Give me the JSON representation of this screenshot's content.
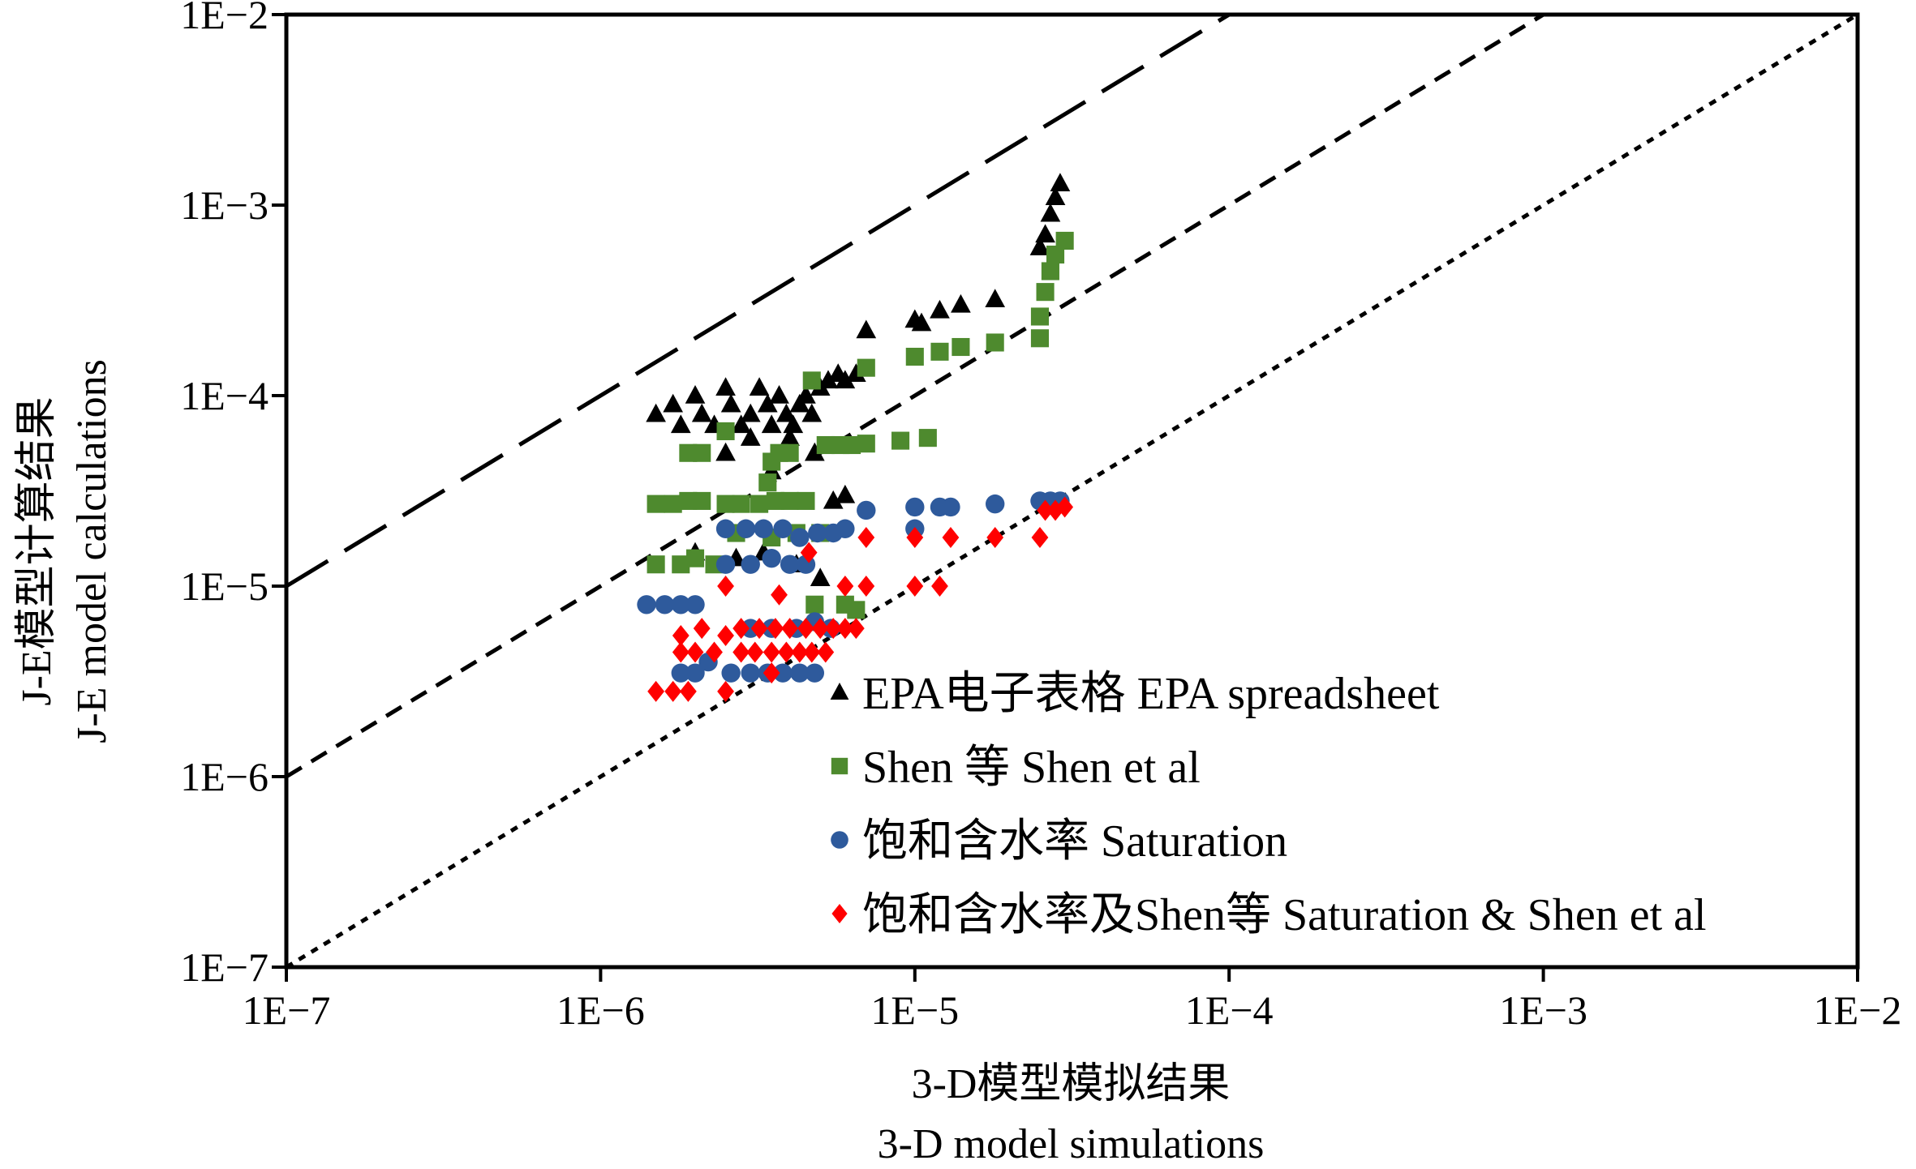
{
  "chart_data": {
    "type": "scatter",
    "x_scale": "log",
    "y_scale": "log",
    "xlim": [
      1e-07,
      0.01
    ],
    "ylim": [
      1e-07,
      0.01
    ],
    "grid": false,
    "legend_position": "bottom-right",
    "x_ticks": [
      "1E−7",
      "1E−6",
      "1E−5",
      "1E−4",
      "1E−3",
      "1E−2"
    ],
    "y_ticks": [
      "1E−7",
      "1E−6",
      "1E−5",
      "1E−4",
      "1E−3",
      "1E−2"
    ],
    "xlabel_cn": "3-D模型模拟结果",
    "xlabel_en": "3-D model simulations",
    "ylabel_cn": "J-E模型计算结果",
    "ylabel_en": "J-E model calculations",
    "reference_lines": [
      {
        "factor": 100,
        "style": "long-dash"
      },
      {
        "factor": 10,
        "style": "short-dash"
      },
      {
        "factor": 1,
        "style": "dotted"
      }
    ],
    "series": [
      {
        "name": "EPA电子表格 EPA spreadsheet",
        "marker": "triangle",
        "color": "#000000",
        "points": [
          [
            1.5e-06,
            8e-05
          ],
          [
            1.7e-06,
            9e-05
          ],
          [
            1.8e-06,
            7e-05
          ],
          [
            2e-06,
            0.0001
          ],
          [
            2.1e-06,
            8e-05
          ],
          [
            2.3e-06,
            7e-05
          ],
          [
            2.5e-06,
            0.00011
          ],
          [
            2.6e-06,
            9e-05
          ],
          [
            2.8e-06,
            7e-05
          ],
          [
            3e-06,
            8e-05
          ],
          [
            3.2e-06,
            0.00011
          ],
          [
            3.4e-06,
            9e-05
          ],
          [
            3.5e-06,
            7e-05
          ],
          [
            3.7e-06,
            0.0001
          ],
          [
            3.9e-06,
            8e-05
          ],
          [
            4.1e-06,
            7e-05
          ],
          [
            4.3e-06,
            9e-05
          ],
          [
            4.5e-06,
            0.0001
          ],
          [
            4.7e-06,
            8e-05
          ],
          [
            5e-06,
            0.00011
          ],
          [
            5.3e-06,
            0.00012
          ],
          [
            5.7e-06,
            0.00013
          ],
          [
            6e-06,
            0.00012
          ],
          [
            6.5e-06,
            0.00013
          ],
          [
            7e-06,
            0.00022
          ],
          [
            1e-05,
            0.00025
          ],
          [
            1.05e-05,
            0.00024
          ],
          [
            1.2e-05,
            0.00028
          ],
          [
            1.4e-05,
            0.0003
          ],
          [
            1.8e-05,
            0.00032
          ],
          [
            2.5e-05,
            0.0006
          ],
          [
            2.6e-05,
            0.0007
          ],
          [
            2.7e-05,
            0.0009
          ],
          [
            2.8e-05,
            0.0011
          ],
          [
            2.9e-05,
            0.0013
          ],
          [
            2.5e-06,
            5e-05
          ],
          [
            3e-06,
            6e-05
          ],
          [
            3.5e-06,
            4e-05
          ],
          [
            4e-06,
            6e-05
          ],
          [
            4.8e-06,
            5e-05
          ],
          [
            2e-06,
            1.5e-05
          ],
          [
            2.7e-06,
            1.4e-05
          ],
          [
            3.3e-06,
            1.5e-05
          ],
          [
            4.2e-06,
            1.3e-05
          ],
          [
            5e-06,
            1.1e-05
          ],
          [
            5.5e-06,
            2.8e-05
          ],
          [
            6e-06,
            3e-05
          ]
        ]
      },
      {
        "name": "Shen 等 Shen et al",
        "marker": "square",
        "color": "#4e8a2e",
        "points": [
          [
            1.5e-06,
            2.7e-05
          ],
          [
            1.7e-06,
            2.7e-05
          ],
          [
            1.9e-06,
            2.8e-05
          ],
          [
            2.1e-06,
            2.8e-05
          ],
          [
            1.9e-06,
            5e-05
          ],
          [
            2.1e-06,
            5e-05
          ],
          [
            2.5e-06,
            6.5e-05
          ],
          [
            2.5e-06,
            2.7e-05
          ],
          [
            2.8e-06,
            2.7e-05
          ],
          [
            3.2e-06,
            2.7e-05
          ],
          [
            3.6e-06,
            2.8e-05
          ],
          [
            4e-06,
            2.8e-05
          ],
          [
            4.5e-06,
            2.8e-05
          ],
          [
            3.5e-06,
            4.5e-05
          ],
          [
            3.7e-06,
            5e-05
          ],
          [
            4e-06,
            5e-05
          ],
          [
            3.4e-06,
            3.5e-05
          ],
          [
            4.7e-06,
            0.00012
          ],
          [
            5.2e-06,
            5.5e-05
          ],
          [
            5.8e-06,
            5.5e-05
          ],
          [
            6.3e-06,
            5.5e-05
          ],
          [
            7e-06,
            5.6e-05
          ],
          [
            7e-06,
            0.00014
          ],
          [
            9e-06,
            5.8e-05
          ],
          [
            1.1e-05,
            6e-05
          ],
          [
            1e-05,
            0.00016
          ],
          [
            1.2e-05,
            0.00017
          ],
          [
            1.4e-05,
            0.00018
          ],
          [
            1.8e-05,
            0.00019
          ],
          [
            2.5e-05,
            0.0002
          ],
          [
            2.5e-05,
            0.00026
          ],
          [
            2.6e-05,
            0.00035
          ],
          [
            2.7e-05,
            0.00045
          ],
          [
            2.8e-05,
            0.00055
          ],
          [
            3e-05,
            0.00065
          ],
          [
            1.5e-06,
            1.3e-05
          ],
          [
            1.8e-06,
            1.3e-05
          ],
          [
            2e-06,
            1.4e-05
          ],
          [
            2.3e-06,
            1.3e-05
          ],
          [
            2.7e-06,
            1.9e-05
          ],
          [
            3.5e-06,
            1.8e-05
          ],
          [
            4.2e-06,
            1.9e-05
          ],
          [
            5e-06,
            1.9e-05
          ],
          [
            4.8e-06,
            8e-06
          ],
          [
            6e-06,
            8e-06
          ],
          [
            6.5e-06,
            7.5e-06
          ]
        ]
      },
      {
        "name": "饱和含水率 Saturation",
        "marker": "circle",
        "color": "#2e5a9c",
        "points": [
          [
            1.4e-06,
            8e-06
          ],
          [
            1.6e-06,
            8e-06
          ],
          [
            1.8e-06,
            8e-06
          ],
          [
            2e-06,
            8e-06
          ],
          [
            1.8e-06,
            3.5e-06
          ],
          [
            2e-06,
            3.5e-06
          ],
          [
            2.2e-06,
            4e-06
          ],
          [
            2.6e-06,
            3.5e-06
          ],
          [
            3e-06,
            3.5e-06
          ],
          [
            3.4e-06,
            3.5e-06
          ],
          [
            3.8e-06,
            3.5e-06
          ],
          [
            4.3e-06,
            3.5e-06
          ],
          [
            4.8e-06,
            3.5e-06
          ],
          [
            2.5e-06,
            1.3e-05
          ],
          [
            3e-06,
            1.3e-05
          ],
          [
            3.5e-06,
            1.4e-05
          ],
          [
            4e-06,
            1.3e-05
          ],
          [
            4.5e-06,
            1.3e-05
          ],
          [
            2.5e-06,
            2e-05
          ],
          [
            2.9e-06,
            2e-05
          ],
          [
            3.3e-06,
            2e-05
          ],
          [
            3.8e-06,
            2e-05
          ],
          [
            4.3e-06,
            1.8e-05
          ],
          [
            4.9e-06,
            1.9e-05
          ],
          [
            5.5e-06,
            1.9e-05
          ],
          [
            6e-06,
            2e-05
          ],
          [
            7e-06,
            2.5e-05
          ],
          [
            1e-05,
            2e-05
          ],
          [
            1e-05,
            2.6e-05
          ],
          [
            1.2e-05,
            2.6e-05
          ],
          [
            1.3e-05,
            2.6e-05
          ],
          [
            1.8e-05,
            2.7e-05
          ],
          [
            2.5e-05,
            2.8e-05
          ],
          [
            2.7e-05,
            2.8e-05
          ],
          [
            2.9e-05,
            2.8e-05
          ],
          [
            3e-06,
            6e-06
          ],
          [
            3.5e-06,
            6e-06
          ],
          [
            4.2e-06,
            6e-06
          ],
          [
            4.8e-06,
            6.5e-06
          ],
          [
            5.4e-06,
            6e-06
          ]
        ]
      },
      {
        "name": "饱和含水率及Shen等 Saturation & Shen et al",
        "marker": "diamond",
        "color": "#ff0000",
        "points": [
          [
            1.5e-06,
            2.8e-06
          ],
          [
            1.7e-06,
            2.8e-06
          ],
          [
            1.9e-06,
            2.8e-06
          ],
          [
            2.5e-06,
            2.8e-06
          ],
          [
            1.8e-06,
            4.5e-06
          ],
          [
            2e-06,
            4.5e-06
          ],
          [
            2.3e-06,
            4.5e-06
          ],
          [
            2.5e-06,
            5.5e-06
          ],
          [
            2.8e-06,
            4.5e-06
          ],
          [
            3.1e-06,
            4.5e-06
          ],
          [
            3.5e-06,
            4.5e-06
          ],
          [
            3.9e-06,
            4.5e-06
          ],
          [
            4.3e-06,
            4.5e-06
          ],
          [
            4.7e-06,
            4.5e-06
          ],
          [
            5.2e-06,
            4.5e-06
          ],
          [
            1.8e-06,
            5.5e-06
          ],
          [
            2.1e-06,
            6e-06
          ],
          [
            2.8e-06,
            6e-06
          ],
          [
            3.2e-06,
            6e-06
          ],
          [
            3.6e-06,
            6e-06
          ],
          [
            4e-06,
            6e-06
          ],
          [
            4.5e-06,
            6e-06
          ],
          [
            5e-06,
            6e-06
          ],
          [
            5.5e-06,
            6e-06
          ],
          [
            6e-06,
            6e-06
          ],
          [
            6.5e-06,
            6e-06
          ],
          [
            3.5e-06,
            3.5e-06
          ],
          [
            2.5e-06,
            1e-05
          ],
          [
            3.7e-06,
            9e-06
          ],
          [
            4.6e-06,
            1.5e-05
          ],
          [
            6e-06,
            1e-05
          ],
          [
            7e-06,
            1e-05
          ],
          [
            7e-06,
            1.8e-05
          ],
          [
            1e-05,
            1e-05
          ],
          [
            1.2e-05,
            1e-05
          ],
          [
            1e-05,
            1.8e-05
          ],
          [
            1.3e-05,
            1.8e-05
          ],
          [
            1.8e-05,
            1.8e-05
          ],
          [
            2.5e-05,
            1.8e-05
          ],
          [
            2.6e-05,
            2.5e-05
          ],
          [
            2.8e-05,
            2.5e-05
          ],
          [
            3e-05,
            2.6e-05
          ]
        ]
      }
    ]
  }
}
